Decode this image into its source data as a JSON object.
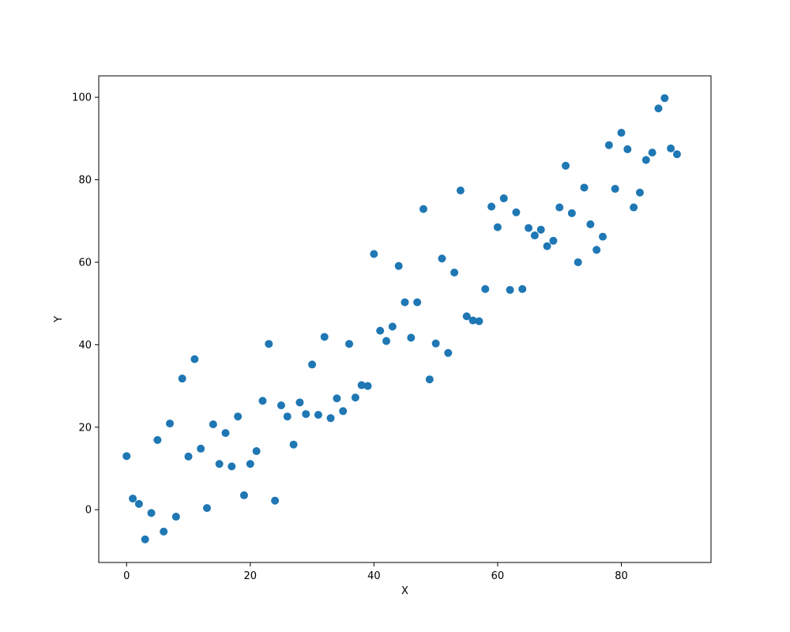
{
  "chart_data": {
    "type": "scatter",
    "title": "",
    "xlabel": "X",
    "ylabel": "Y",
    "xlim": [
      -4.5,
      94.5
    ],
    "ylim": [
      -12.8,
      105.2
    ],
    "xticks": [
      0,
      20,
      40,
      60,
      80
    ],
    "yticks": [
      0,
      20,
      40,
      60,
      80,
      100
    ],
    "grid": false,
    "legend": "none",
    "series": [
      {
        "color": "#1f77b4",
        "points": [
          [
            0,
            13.0
          ],
          [
            1,
            2.7
          ],
          [
            2,
            1.4
          ],
          [
            3,
            -7.2
          ],
          [
            4,
            -0.8
          ],
          [
            5,
            16.9
          ],
          [
            6,
            -5.3
          ],
          [
            7,
            20.9
          ],
          [
            8,
            -1.7
          ],
          [
            9,
            31.8
          ],
          [
            10,
            12.9
          ],
          [
            11,
            36.5
          ],
          [
            12,
            14.8
          ],
          [
            13,
            0.4
          ],
          [
            14,
            20.7
          ],
          [
            15,
            11.1
          ],
          [
            16,
            18.6
          ],
          [
            17,
            10.5
          ],
          [
            18,
            22.6
          ],
          [
            19,
            3.5
          ],
          [
            20,
            11.1
          ],
          [
            21,
            14.2
          ],
          [
            22,
            26.4
          ],
          [
            23,
            40.2
          ],
          [
            24,
            2.2
          ],
          [
            25,
            25.3
          ],
          [
            26,
            22.6
          ],
          [
            27,
            15.8
          ],
          [
            28,
            26.0
          ],
          [
            29,
            23.2
          ],
          [
            30,
            35.2
          ],
          [
            31,
            23.0
          ],
          [
            32,
            41.9
          ],
          [
            33,
            22.2
          ],
          [
            34,
            27.0
          ],
          [
            35,
            23.9
          ],
          [
            36,
            40.2
          ],
          [
            37,
            27.2
          ],
          [
            38,
            30.2
          ],
          [
            39,
            30.0
          ],
          [
            40,
            62.0
          ],
          [
            41,
            43.4
          ],
          [
            42,
            40.9
          ],
          [
            43,
            44.4
          ],
          [
            44,
            59.1
          ],
          [
            45,
            50.3
          ],
          [
            46,
            41.7
          ],
          [
            47,
            50.3
          ],
          [
            48,
            72.9
          ],
          [
            49,
            31.6
          ],
          [
            50,
            40.3
          ],
          [
            51,
            60.9
          ],
          [
            52,
            38.0
          ],
          [
            53,
            57.5
          ],
          [
            54,
            77.4
          ],
          [
            55,
            46.9
          ],
          [
            56,
            45.9
          ],
          [
            57,
            45.7
          ],
          [
            58,
            53.5
          ],
          [
            59,
            73.5
          ],
          [
            60,
            68.5
          ],
          [
            61,
            75.5
          ],
          [
            62,
            53.3
          ],
          [
            63,
            72.1
          ],
          [
            64,
            53.5
          ],
          [
            65,
            68.3
          ],
          [
            66,
            66.5
          ],
          [
            67,
            67.9
          ],
          [
            68,
            63.9
          ],
          [
            69,
            65.2
          ],
          [
            70,
            73.3
          ],
          [
            71,
            83.4
          ],
          [
            72,
            71.9
          ],
          [
            73,
            60.0
          ],
          [
            74,
            78.1
          ],
          [
            75,
            69.2
          ],
          [
            76,
            63.0
          ],
          [
            77,
            66.2
          ],
          [
            78,
            88.4
          ],
          [
            79,
            77.8
          ],
          [
            80,
            91.4
          ],
          [
            81,
            87.4
          ],
          [
            82,
            73.3
          ],
          [
            83,
            76.9
          ],
          [
            84,
            84.8
          ],
          [
            85,
            86.6
          ],
          [
            86,
            97.3
          ],
          [
            87,
            99.8
          ],
          [
            88,
            87.6
          ],
          [
            89,
            86.2
          ]
        ]
      }
    ]
  }
}
